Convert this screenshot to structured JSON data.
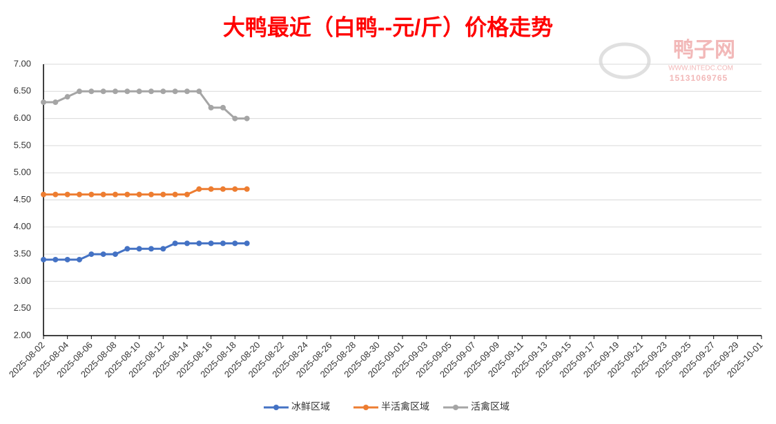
{
  "chart_data": {
    "type": "line",
    "title": "大鸭最近（白鸭--元/斤）价格走势",
    "watermark": {
      "name": "鸭子网",
      "url": "WWW.INTEDC.COM",
      "phone": "15131069765"
    },
    "x": [
      "2025-08-02",
      "2025-08-03",
      "2025-08-04",
      "2025-08-05",
      "2025-08-06",
      "2025-08-07",
      "2025-08-08",
      "2025-08-09",
      "2025-08-10",
      "2025-08-11",
      "2025-08-12",
      "2025-08-13",
      "2025-08-14",
      "2025-08-15",
      "2025-08-16",
      "2025-08-17",
      "2025-08-18",
      "2025-08-19"
    ],
    "series": [
      {
        "name": "冰鲜区域",
        "color": "#4472c4",
        "values": [
          3.4,
          3.4,
          3.4,
          3.4,
          3.5,
          3.5,
          3.5,
          3.6,
          3.6,
          3.6,
          3.6,
          3.7,
          3.7,
          3.7,
          3.7,
          3.7,
          3.7,
          3.7
        ]
      },
      {
        "name": "半活禽区域",
        "color": "#ed7d31",
        "values": [
          4.6,
          4.6,
          4.6,
          4.6,
          4.6,
          4.6,
          4.6,
          4.6,
          4.6,
          4.6,
          4.6,
          4.6,
          4.6,
          4.7,
          4.7,
          4.7,
          4.7,
          4.7
        ]
      },
      {
        "name": "活禽区域",
        "color": "#a5a5a5",
        "values": [
          6.3,
          6.3,
          6.4,
          6.5,
          6.5,
          6.5,
          6.5,
          6.5,
          6.5,
          6.5,
          6.5,
          6.5,
          6.5,
          6.5,
          6.2,
          6.2,
          6.0,
          6.0
        ]
      }
    ],
    "xlim": [
      "2025-08-02",
      "2025-10-01"
    ],
    "xticks": [
      "2025-08-02",
      "2025-08-04",
      "2025-08-06",
      "2025-08-08",
      "2025-08-10",
      "2025-08-12",
      "2025-08-14",
      "2025-08-16",
      "2025-08-18",
      "2025-08-20",
      "2025-08-22",
      "2025-08-24",
      "2025-08-26",
      "2025-08-28",
      "2025-08-30",
      "2025-09-01",
      "2025-09-03",
      "2025-09-05",
      "2025-09-07",
      "2025-09-09",
      "2025-09-11",
      "2025-09-13",
      "2025-09-15",
      "2025-09-17",
      "2025-09-19",
      "2025-09-21",
      "2025-09-23",
      "2025-09-25",
      "2025-09-27",
      "2025-09-29",
      "2025-10-01"
    ],
    "ylim": [
      2,
      7
    ],
    "yticks": [
      {
        "value": 2,
        "label": "2.00"
      },
      {
        "value": 2.5,
        "label": "2.50"
      },
      {
        "value": 3,
        "label": "3.00"
      },
      {
        "value": 3.5,
        "label": "3.50"
      },
      {
        "value": 4,
        "label": "4.00"
      },
      {
        "value": 4.5,
        "label": "4.50"
      },
      {
        "value": 5,
        "label": "5.00"
      },
      {
        "value": 5.5,
        "label": "5.50"
      },
      {
        "value": 6,
        "label": "6.00"
      },
      {
        "value": 6.5,
        "label": "6.50"
      },
      {
        "value": 7,
        "label": "7.00"
      }
    ],
    "grid": true,
    "legend": "bottom"
  }
}
